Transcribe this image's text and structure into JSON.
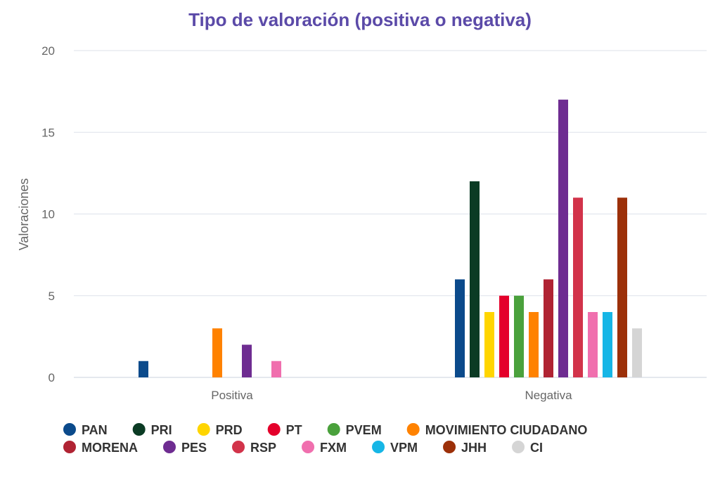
{
  "chart_data": {
    "type": "bar",
    "title": "Tipo de valoración (positiva o negativa)",
    "ylabel": "Valoraciones",
    "xlabel": "",
    "ylim": [
      0,
      20
    ],
    "yticks": [
      "0",
      "5",
      "10",
      "15",
      "20"
    ],
    "grid": true,
    "legend_position": "bottom",
    "categories": [
      "Positiva",
      "Negativa"
    ],
    "series": [
      {
        "name": "PAN",
        "color": "#0b4a8b",
        "values": [
          1,
          6
        ]
      },
      {
        "name": "PRI",
        "color": "#0b3b24",
        "values": [
          0,
          12
        ]
      },
      {
        "name": "PRD",
        "color": "#ffd500",
        "values": [
          0,
          4
        ]
      },
      {
        "name": "PT",
        "color": "#e4002b",
        "values": [
          0,
          5
        ]
      },
      {
        "name": "PVEM",
        "color": "#4aa13c",
        "values": [
          0,
          5
        ]
      },
      {
        "name": "MOVIMIENTO CIUDADANO",
        "color": "#ff8200",
        "values": [
          3,
          4
        ]
      },
      {
        "name": "MORENA",
        "color": "#b02333",
        "values": [
          0,
          6
        ]
      },
      {
        "name": "PES",
        "color": "#6e2c91",
        "values": [
          2,
          17
        ]
      },
      {
        "name": "RSP",
        "color": "#d2334a",
        "values": [
          0,
          11
        ]
      },
      {
        "name": "FXM",
        "color": "#f06fae",
        "values": [
          1,
          4
        ]
      },
      {
        "name": "VPM",
        "color": "#16b6e6",
        "values": [
          0,
          4
        ]
      },
      {
        "name": "JHH",
        "color": "#9c3009",
        "values": [
          0,
          11
        ]
      },
      {
        "name": "CI",
        "color": "#d5d5d5",
        "values": [
          0,
          3
        ]
      }
    ],
    "colors": {
      "title": "#5b4aa8",
      "grid": "#dde2ea",
      "axis_text": "#666666"
    }
  }
}
